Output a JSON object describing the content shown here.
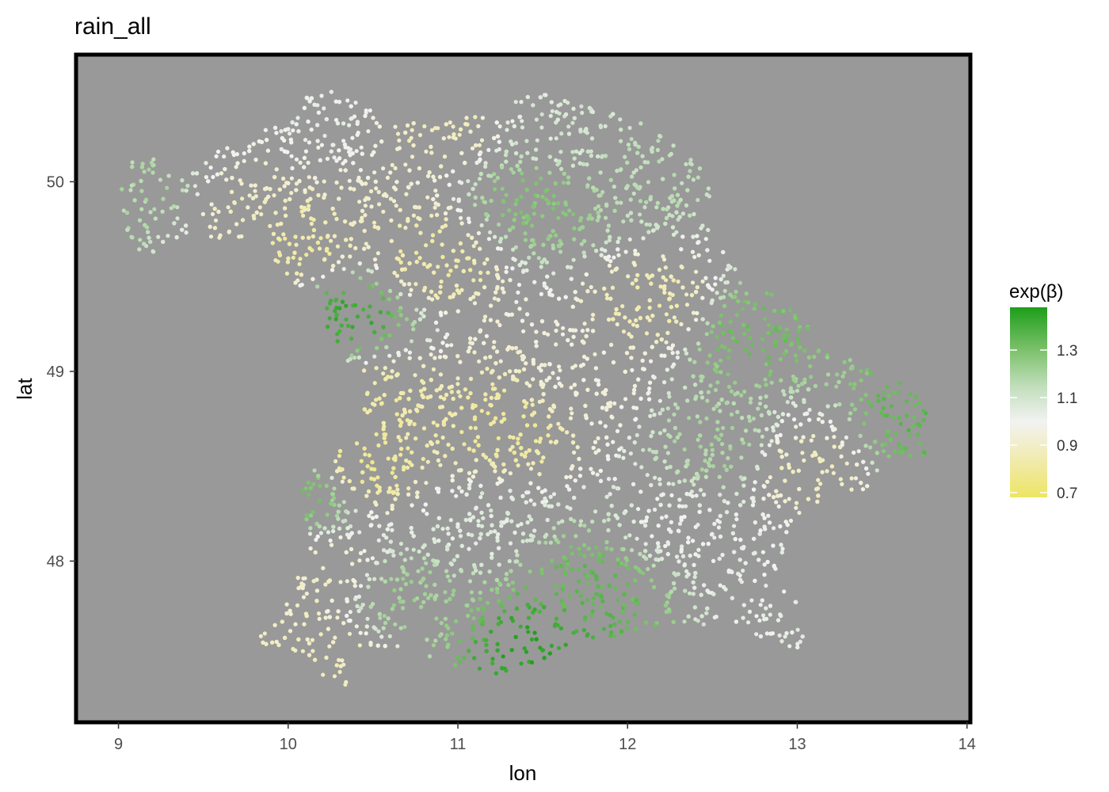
{
  "chart_data": {
    "type": "scatter",
    "title": "rain_all",
    "xlabel": "lon",
    "ylabel": "lat",
    "xlim": [
      8.75,
      14.02
    ],
    "ylim": [
      47.15,
      50.67
    ],
    "x_ticks": [
      9,
      10,
      11,
      12,
      13,
      14
    ],
    "y_ticks": [
      48,
      49,
      50
    ],
    "panel_background": "#999999",
    "panel_border": "#000000",
    "grid": false,
    "legend": {
      "title": "exp(β)",
      "position": "right",
      "scale_min": 0.68,
      "scale_max": 1.48,
      "breaks": [
        0.7,
        0.9,
        1.1,
        1.3
      ],
      "break_labels": [
        "0.7",
        "0.9",
        "1.1",
        "1.3"
      ],
      "colors": [
        {
          "value": 0.68,
          "hex": "#ede563"
        },
        {
          "value": 0.85,
          "hex": "#f1ebb4"
        },
        {
          "value": 1.0,
          "hex": "#f2f2f2"
        },
        {
          "value": 1.15,
          "hex": "#c0deba"
        },
        {
          "value": 1.3,
          "hex": "#7cc16c"
        },
        {
          "value": 1.48,
          "hex": "#1e9e1a"
        }
      ]
    },
    "regions": [
      {
        "lon": 9.15,
        "lat": 49.95,
        "value": 1.18
      },
      {
        "lon": 9.75,
        "lat": 49.85,
        "value": 0.9
      },
      {
        "lon": 10.05,
        "lat": 49.65,
        "value": 0.82
      },
      {
        "lon": 10.15,
        "lat": 50.35,
        "value": 1.02
      },
      {
        "lon": 10.35,
        "lat": 49.3,
        "value": 1.42
      },
      {
        "lon": 10.55,
        "lat": 48.85,
        "value": 0.82
      },
      {
        "lon": 10.45,
        "lat": 48.5,
        "value": 0.78
      },
      {
        "lon": 10.85,
        "lat": 49.6,
        "value": 0.82
      },
      {
        "lon": 10.9,
        "lat": 50.3,
        "value": 0.88
      },
      {
        "lon": 11.3,
        "lat": 48.72,
        "value": 0.8
      },
      {
        "lon": 11.45,
        "lat": 49.9,
        "value": 1.28
      },
      {
        "lon": 11.6,
        "lat": 50.25,
        "value": 1.08
      },
      {
        "lon": 12.1,
        "lat": 50.05,
        "value": 1.15
      },
      {
        "lon": 12.2,
        "lat": 49.35,
        "value": 0.85
      },
      {
        "lon": 12.7,
        "lat": 49.2,
        "value": 1.32
      },
      {
        "lon": 12.55,
        "lat": 48.6,
        "value": 1.2
      },
      {
        "lon": 13.05,
        "lat": 48.5,
        "value": 0.88
      },
      {
        "lon": 13.7,
        "lat": 48.75,
        "value": 1.35
      },
      {
        "lon": 10.1,
        "lat": 48.35,
        "value": 1.3
      },
      {
        "lon": 10.2,
        "lat": 47.95,
        "value": 0.9
      },
      {
        "lon": 10.7,
        "lat": 47.8,
        "value": 1.22
      },
      {
        "lon": 11.45,
        "lat": 47.55,
        "value": 1.45
      },
      {
        "lon": 11.8,
        "lat": 47.85,
        "value": 1.35
      },
      {
        "lon": 11.1,
        "lat": 48.2,
        "value": 1.05
      },
      {
        "lon": 12.8,
        "lat": 47.9,
        "value": 1.02
      },
      {
        "lon": 10.25,
        "lat": 47.5,
        "value": 0.88
      },
      {
        "lon": 11.7,
        "lat": 48.95,
        "value": 0.95
      },
      {
        "lon": 12.3,
        "lat": 48.2,
        "value": 1.02
      }
    ]
  }
}
